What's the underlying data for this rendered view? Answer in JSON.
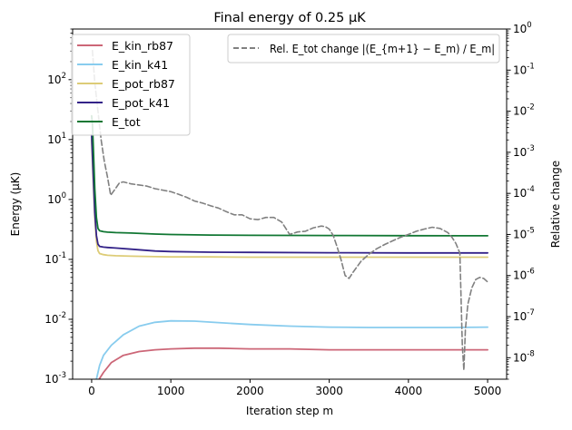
{
  "chart_data": {
    "type": "line",
    "title": "Final energy of 0.25 µK",
    "xlabel": "Iteration step m",
    "ylabel": "Energy (µK)",
    "y2label": "Relative change",
    "xlim": [
      -240,
      5240
    ],
    "ylim": [
      0.001,
      700
    ],
    "y2lim": [
      3e-09,
      1.0
    ],
    "yscale": "log",
    "y2scale": "log",
    "x_ticks": [
      0,
      1000,
      2000,
      3000,
      4000,
      5000
    ],
    "x_tick_labels": [
      "0",
      "1000",
      "2000",
      "3000",
      "4000",
      "5000"
    ],
    "y_ticks": [
      0.001,
      0.01,
      0.1,
      1,
      10,
      100
    ],
    "y_tick_exponents": [
      "-3",
      "-2",
      "-1",
      "0",
      "1",
      "2"
    ],
    "y2_ticks": [
      1e-08,
      1e-07,
      1e-06,
      1e-05,
      0.0001,
      0.001,
      0.01,
      0.1,
      1
    ],
    "y2_tick_exponents": [
      "-8",
      "-7",
      "-6",
      "-5",
      "-4",
      "-3",
      "-2",
      "-1",
      "0"
    ],
    "tick_base": "10",
    "legend_left_position": "top-left",
    "legend_right_position": "top-right",
    "series": [
      {
        "name": "E_kin_rb87",
        "color": "#cc6677",
        "axis": "left",
        "x": [
          95,
          150,
          250,
          400,
          600,
          800,
          1000,
          1300,
          1600,
          2000,
          2500,
          3000,
          3500,
          4000,
          4500,
          5000
        ],
        "values": [
          0.001,
          0.0013,
          0.0019,
          0.0025,
          0.0029,
          0.0031,
          0.0032,
          0.0033,
          0.0033,
          0.0032,
          0.0032,
          0.0031,
          0.0031,
          0.0031,
          0.0031,
          0.0031
        ]
      },
      {
        "name": "E_kin_k41",
        "color": "#88ccee",
        "axis": "left",
        "x": [
          60,
          100,
          150,
          250,
          400,
          600,
          800,
          1000,
          1300,
          1600,
          2000,
          2500,
          3000,
          3500,
          4000,
          4500,
          5000
        ],
        "values": [
          0.001,
          0.0017,
          0.0025,
          0.0037,
          0.0055,
          0.0077,
          0.0089,
          0.0094,
          0.0093,
          0.0088,
          0.0082,
          0.0077,
          0.0074,
          0.0073,
          0.0073,
          0.0073,
          0.0074
        ]
      },
      {
        "name": "E_pot_rb87",
        "color": "#ddcc77",
        "axis": "left",
        "x": [
          0,
          20,
          40,
          60,
          80,
          100,
          150,
          200,
          300,
          500,
          800,
          1000,
          1500,
          2000,
          3000,
          4000,
          5000
        ],
        "values": [
          10.0,
          2.0,
          0.5,
          0.2,
          0.14,
          0.125,
          0.12,
          0.117,
          0.115,
          0.113,
          0.111,
          0.11,
          0.11,
          0.109,
          0.109,
          0.109,
          0.109
        ]
      },
      {
        "name": "E_pot_k41",
        "color": "#332288",
        "axis": "left",
        "x": [
          0,
          20,
          40,
          60,
          80,
          100,
          150,
          200,
          300,
          500,
          800,
          1000,
          1500,
          2000,
          3000,
          4000,
          5000
        ],
        "values": [
          12.0,
          2.5,
          0.6,
          0.25,
          0.18,
          0.165,
          0.16,
          0.158,
          0.155,
          0.148,
          0.138,
          0.135,
          0.132,
          0.131,
          0.129,
          0.128,
          0.128
        ]
      },
      {
        "name": "E_tot",
        "color": "#117733",
        "axis": "left",
        "x": [
          0,
          10,
          20,
          40,
          60,
          80,
          100,
          150,
          200,
          300,
          500,
          800,
          1000,
          1500,
          2000,
          3000,
          4000,
          5000
        ],
        "values": [
          25.0,
          18.0,
          8.0,
          1.5,
          0.5,
          0.33,
          0.3,
          0.29,
          0.285,
          0.28,
          0.275,
          0.265,
          0.26,
          0.255,
          0.252,
          0.25,
          0.249,
          0.248
        ]
      },
      {
        "name": "Rel. E_tot change |(E_{m+1} − E_m) / E_m|",
        "color": "#808080",
        "dashed": true,
        "axis": "right",
        "x": [
          10,
          40,
          80,
          120,
          160,
          200,
          240,
          300,
          350,
          400,
          450,
          500,
          600,
          700,
          800,
          900,
          1000,
          1100,
          1200,
          1300,
          1400,
          1500,
          1600,
          1700,
          1800,
          1900,
          2000,
          2100,
          2200,
          2300,
          2400,
          2500,
          2600,
          2700,
          2800,
          2900,
          2950,
          3000,
          3050,
          3100,
          3150,
          3200,
          3250,
          3300,
          3400,
          3500,
          3600,
          3700,
          3800,
          3900,
          4000,
          4100,
          4200,
          4300,
          4400,
          4500,
          4550,
          4600,
          4650,
          4680,
          4700,
          4720,
          4750,
          4800,
          4850,
          4900,
          4950,
          5000
        ],
        "values": [
          0.3,
          0.05,
          0.01,
          0.002,
          0.0006,
          0.00025,
          9e-05,
          0.00013,
          0.00018,
          0.00019,
          0.00018,
          0.00017,
          0.00016,
          0.00015,
          0.00013,
          0.00012,
          0.00011,
          9.5e-05,
          8e-05,
          6.5e-05,
          5.8e-05,
          5e-05,
          4.4e-05,
          3.6e-05,
          3e-05,
          3e-05,
          2.4e-05,
          2.3e-05,
          2.6e-05,
          2.6e-05,
          2e-05,
          1e-05,
          1.15e-05,
          1.2e-05,
          1.45e-05,
          1.6e-05,
          1.55e-05,
          1.35e-05,
          9.5e-06,
          5e-06,
          2.4e-06,
          1e-06,
          8.5e-07,
          1.2e-06,
          2.2e-06,
          3.3e-06,
          4.5e-06,
          5.7e-06,
          7e-06,
          8.5e-06,
          1e-05,
          1.2e-05,
          1.35e-05,
          1.5e-05,
          1.4e-05,
          1.1e-05,
          8.5e-06,
          6e-06,
          3.5e-06,
          2e-08,
          5e-09,
          5e-08,
          2e-07,
          5e-07,
          8e-07,
          9e-07,
          8.5e-07,
          7e-07
        ]
      }
    ]
  }
}
